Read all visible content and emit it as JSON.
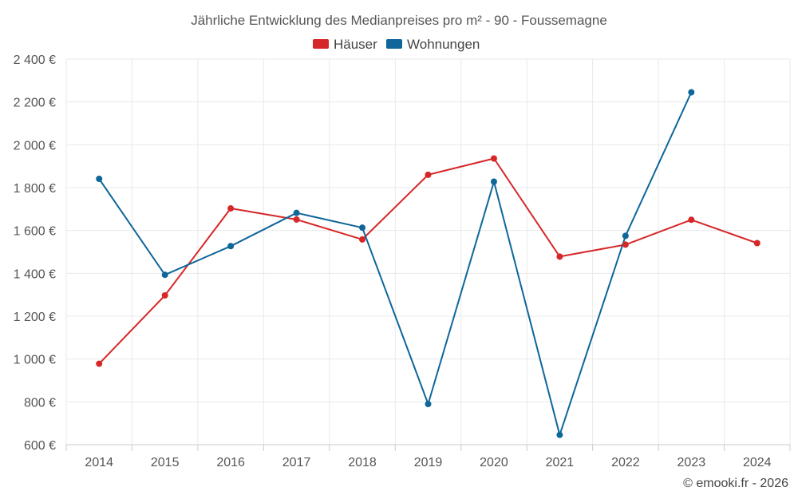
{
  "chart_data": {
    "type": "line",
    "title": "Jährliche Entwicklung des Medianpreises pro m² - 90 - Foussemagne",
    "categories": [
      "2014",
      "2015",
      "2016",
      "2017",
      "2018",
      "2019",
      "2020",
      "2021",
      "2022",
      "2023",
      "2024"
    ],
    "series": [
      {
        "name": "Häuser",
        "color": "#d62728",
        "values": [
          978,
          1297,
          1703,
          1651,
          1558,
          1860,
          1936,
          1478,
          1534,
          1650,
          1541
        ]
      },
      {
        "name": "Wohnungen",
        "color": "#0e6699",
        "values": [
          1841,
          1393,
          1527,
          1682,
          1613,
          790,
          1828,
          646,
          1575,
          2245,
          null
        ]
      }
    ],
    "ylim": [
      600,
      2400
    ],
    "yticks": [
      600,
      800,
      1000,
      1200,
      1400,
      1600,
      1800,
      2000,
      2200,
      2400
    ],
    "ytick_labels": [
      "600 €",
      "800 €",
      "1 000 €",
      "1 200 €",
      "1 400 €",
      "1 600 €",
      "1 800 €",
      "2 000 €",
      "2 200 €",
      "2 400 €"
    ],
    "xlabel": "",
    "ylabel": "",
    "grid": true,
    "legend_position": "top-center"
  },
  "credit": "© emooki.fr - 2026"
}
